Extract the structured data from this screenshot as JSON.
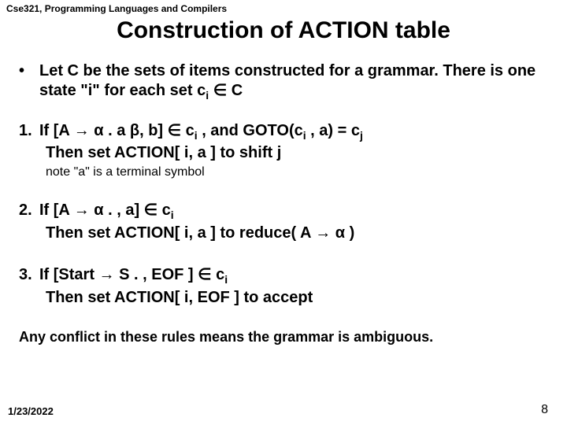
{
  "course_header": "Cse321, Programming Languages and Compilers",
  "title": "Construction of ACTION table",
  "bullet_marker": "•",
  "intro": "Let C be the sets of items constructed for a grammar.  There is one state \"i\" for each set c",
  "intro_sub": "i",
  "intro_tail": " ∈ C",
  "rule1_num": "1.",
  "rule1_if_a": "If [A → α . a β,  b] ∈ c",
  "rule1_if_sub1": "i",
  "rule1_if_b": " , and GOTO(c",
  "rule1_if_sub2": "i",
  "rule1_if_c": " , a) = c",
  "rule1_if_sub3": "j",
  "rule1_then": "Then set ACTION[ i, a ]  to shift j",
  "rule1_note": "note \"a\" is a terminal symbol",
  "rule2_num": "2.",
  "rule2_if_a": "If [A → α . ,  a] ∈ c",
  "rule2_if_sub": "i",
  "rule2_then": "Then set ACTION[ i, a ]  to reduce( A → α )",
  "rule3_num": "3.",
  "rule3_if_a": "If [Start → S . ,  EOF ] ∈ c",
  "rule3_if_sub": "i",
  "rule3_then": "Then set ACTION[ i, EOF ]  to accept",
  "conflict": "Any conflict in these rules means the grammar is ambiguous.",
  "date": "1/23/2022",
  "page": "8"
}
